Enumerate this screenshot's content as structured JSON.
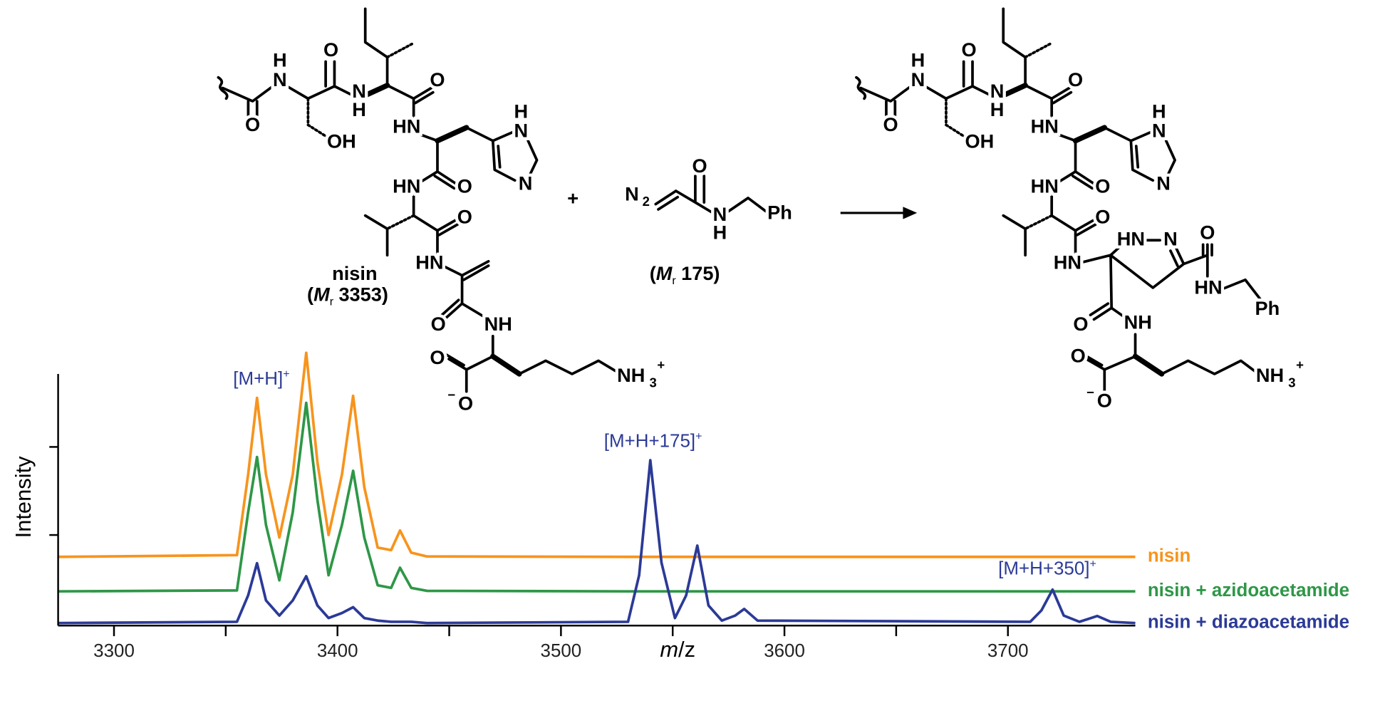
{
  "scheme": {
    "reactant": {
      "name": "nisin",
      "mass_text": [
        "(",
        "M",
        "r",
        "3353)"
      ],
      "atoms": [
        "H",
        "N",
        "O",
        "O",
        "OH",
        "N",
        "H",
        "O",
        "HN",
        "H",
        "N",
        "N",
        "O",
        "HN",
        "O",
        "HN",
        "O",
        "NH",
        "O",
        "O",
        "−",
        "NH",
        "3",
        "+"
      ]
    },
    "plus": "+",
    "reagent": {
      "mass_text": [
        "(",
        "M",
        "r",
        "175)"
      ],
      "atoms": [
        "N",
        "2",
        "O",
        "N",
        "H",
        "Ph"
      ]
    },
    "product": {
      "atoms": [
        "H",
        "N",
        "O",
        "O",
        "OH",
        "N",
        "H",
        "O",
        "HN",
        "H",
        "N",
        "N",
        "O",
        "HN",
        "O",
        "HN",
        "HN",
        "N",
        "O",
        "HN",
        "Ph",
        "O",
        "NH",
        "O",
        "O",
        "−",
        "NH",
        "3",
        "+"
      ]
    }
  },
  "chart_data": {
    "type": "line",
    "xlabel": {
      "italic": "m",
      "rest": "/z"
    },
    "ylabel": "Intensity",
    "x": [
      3275,
      3355,
      3360,
      3364,
      3368,
      3374,
      3380,
      3386,
      3391,
      3396,
      3402,
      3407,
      3412,
      3418,
      3424,
      3428,
      3433,
      3440,
      3530,
      3535,
      3540,
      3545,
      3551,
      3556,
      3561,
      3566,
      3572,
      3578,
      3582,
      3588,
      3710,
      3715,
      3720,
      3725,
      3732,
      3740,
      3746,
      3757
    ],
    "series": [
      {
        "name": "nisin",
        "color": "#f7941d",
        "values": [
          27.3,
          28,
          60,
          90.5,
          60,
          35,
          60,
          108.4,
          65,
          36,
          60,
          91.3,
          55,
          31,
          30,
          37.8,
          29,
          27.5,
          27.3,
          27.3,
          27.3,
          27.3,
          27.3,
          27.3,
          27.3,
          27.3,
          27.3,
          27.3,
          27.3,
          27.3,
          27.3,
          27.3,
          27.3,
          27.3,
          27.3,
          27.3,
          27.3,
          27.3
        ]
      },
      {
        "name": "nisin + azidoacetamide",
        "color": "#2e9747",
        "values": [
          13.6,
          14,
          45,
          67,
          40,
          18,
          45,
          88.5,
          50,
          20,
          40,
          61.5,
          35,
          16,
          15,
          23,
          15,
          13.8,
          13.6,
          13.6,
          13.6,
          13.6,
          13.6,
          13.6,
          13.6,
          13.6,
          13.6,
          13.6,
          13.6,
          13.6,
          13.6,
          13.6,
          13.6,
          13.6,
          13.6,
          13.6,
          13.6,
          13.6
        ]
      },
      {
        "name": "nisin + diazoacetamide",
        "color": "#2b3a97",
        "values": [
          1,
          1.5,
          12,
          24.8,
          10,
          4,
          10,
          19.6,
          8,
          3,
          5,
          7.3,
          3,
          2,
          1.5,
          1.5,
          1.5,
          1,
          1.5,
          20,
          65.7,
          25,
          3,
          12,
          31.8,
          8,
          2,
          4,
          6.6,
          2,
          1.5,
          6,
          14.3,
          4,
          1.5,
          3.8,
          1.5,
          1
        ]
      }
    ],
    "annotations": [
      {
        "text": "[M+H]",
        "sup": "+"
      },
      {
        "text": "[M+H+175]",
        "sup": "+"
      },
      {
        "text": "[M+H+350]",
        "sup": "+"
      }
    ],
    "annotation_color": "#2b3a97",
    "xlim": [
      3275,
      3757
    ],
    "ylim": [
      0,
      100
    ],
    "xticks": [
      3300,
      3400,
      3500,
      3600,
      3700
    ],
    "xminor_ticks": [
      3350,
      3450,
      3550,
      3650
    ],
    "yticks": [
      36,
      71
    ]
  }
}
